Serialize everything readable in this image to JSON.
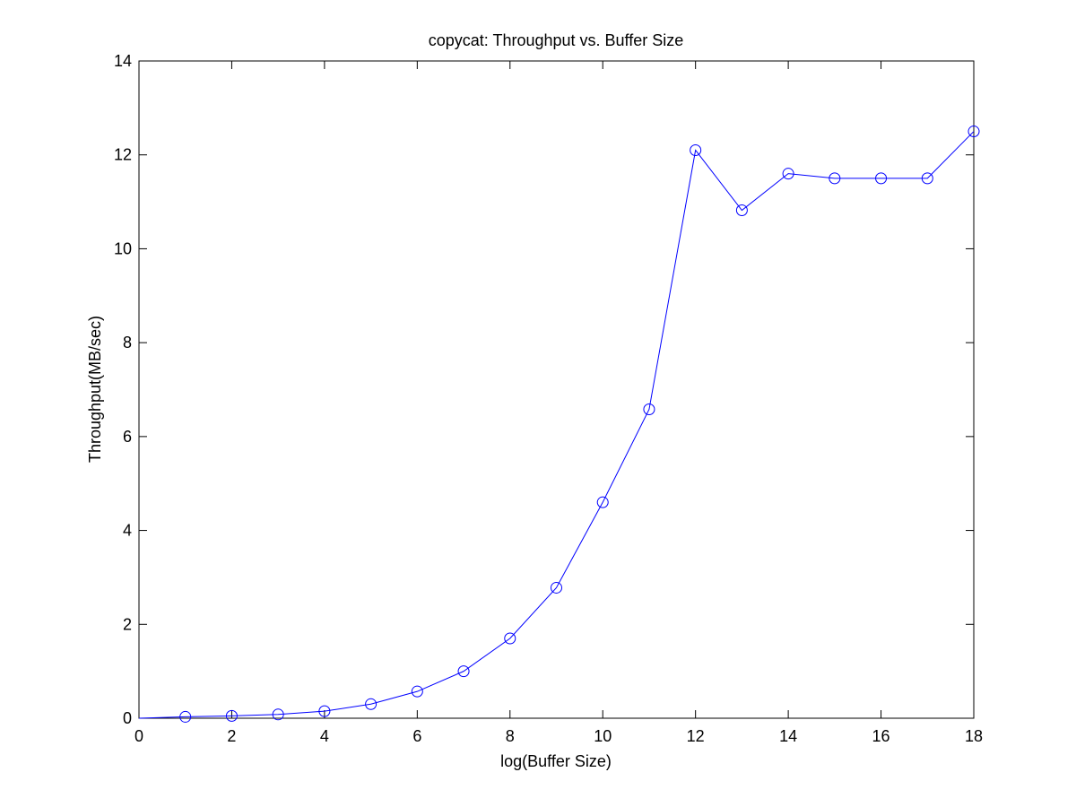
{
  "chart_data": {
    "type": "line",
    "title": "copycat: Throughput vs. Buffer Size",
    "xlabel": "log(Buffer Size)",
    "ylabel": "Throughput(MB/sec)",
    "xlim": [
      0,
      18
    ],
    "ylim": [
      0,
      14
    ],
    "xticks": [
      0,
      2,
      4,
      6,
      8,
      10,
      12,
      14,
      16,
      18
    ],
    "yticks": [
      0,
      2,
      4,
      6,
      8,
      10,
      12,
      14
    ],
    "grid": false,
    "marker": "circle",
    "series": [
      {
        "x": [
          0,
          1,
          2,
          3,
          4,
          5,
          6,
          7,
          8,
          9,
          10,
          11,
          12,
          13,
          14,
          15,
          16,
          17,
          18
        ],
        "y": [
          0.0,
          0.03,
          0.05,
          0.08,
          0.15,
          0.3,
          0.57,
          1.0,
          1.7,
          2.78,
          4.6,
          6.58,
          12.1,
          10.82,
          11.6,
          11.5,
          11.5,
          11.5,
          12.5
        ],
        "markers_x": [
          1,
          2,
          3,
          4,
          5,
          6,
          7,
          8,
          9,
          10,
          11,
          12,
          13,
          14,
          15,
          16,
          17,
          18
        ]
      }
    ],
    "colors": {
      "line": "#0000ff",
      "axes": "#000000",
      "background": "#ffffff"
    }
  }
}
